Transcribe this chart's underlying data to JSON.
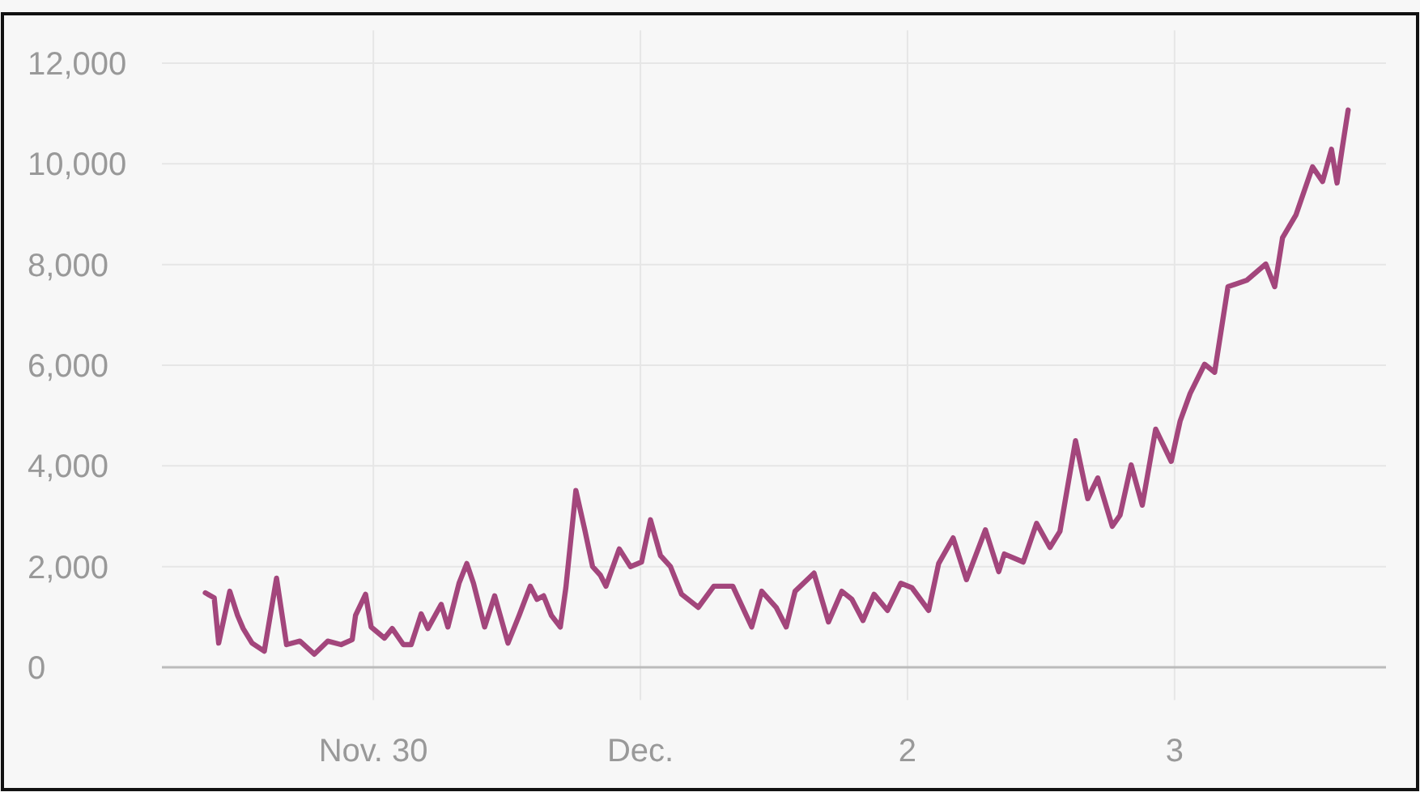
{
  "chart_data": {
    "type": "line",
    "color": "#a3467c",
    "grid": true,
    "xlim": [
      "--11-29T05:00",
      "--12-03T19:00"
    ],
    "xticks": [
      {
        "value": "--11-30",
        "label": "Nov. 30"
      },
      {
        "value": "--12-01",
        "label": "Dec."
      },
      {
        "value": "--12-02",
        "label": "2"
      },
      {
        "value": "--12-03",
        "label": "3"
      }
    ],
    "ylim": [
      -650,
      12650
    ],
    "yticks": [
      {
        "value": 0,
        "label": "0"
      },
      {
        "value": 2000,
        "label": "2,000"
      },
      {
        "value": 4000,
        "label": "4,000"
      },
      {
        "value": 6000,
        "label": "6,000"
      },
      {
        "value": 8000,
        "label": "8,000"
      },
      {
        "value": 10000,
        "label": "10,000"
      },
      {
        "value": 12000,
        "label": "12,000"
      }
    ],
    "x": [
      "--11-29T08:54",
      "--11-29T09:42",
      "--11-29T10:06",
      "--11-29T11:06",
      "--11-29T11:48",
      "--11-29T12:18",
      "--11-29T13:06",
      "--11-29T14:12",
      "--11-29T15:18",
      "--11-29T16:12",
      "--11-29T17:24",
      "--11-29T18:42",
      "--11-29T19:54",
      "--11-29T21:06",
      "--11-29T22:06",
      "--11-29T22:24",
      "--11-29T23:18",
      "--11-29T23:48",
      "--11-30T01:00",
      "--11-30T01:42",
      "--11-30T02:42",
      "--11-30T03:24",
      "--11-30T04:18",
      "--11-30T04:54",
      "--11-30T06:06",
      "--11-30T06:42",
      "--11-30T07:42",
      "--11-30T08:24",
      "--11-30T09:00",
      "--11-30T10:00",
      "--11-30T10:54",
      "--11-30T12:06",
      "--11-30T13:06",
      "--11-30T14:06",
      "--11-30T14:42",
      "--11-30T15:18",
      "--11-30T16:00",
      "--11-30T16:48",
      "--11-30T17:18",
      "--11-30T18:12",
      "--11-30T19:00",
      "--11-30T19:42",
      "--11-30T20:24",
      "--11-30T20:54",
      "--11-30T22:06",
      "--11-30T23:06",
      "--12-01T00:06",
      "--12-01T00:54",
      "--12-01T01:48",
      "--12-01T02:42",
      "--12-01T03:42",
      "--12-01T05:12",
      "--12-01T06:36",
      "--12-01T08:18",
      "--12-01T10:00",
      "--12-01T10:54",
      "--12-01T12:12",
      "--12-01T13:06",
      "--12-01T13:54",
      "--12-01T15:36",
      "--12-01T16:54",
      "--12-01T18:06",
      "--12-01T19:00",
      "--12-01T20:00",
      "--12-01T21:00",
      "--12-01T22:12",
      "--12-01T23:24",
      "--12-02T00:24",
      "--12-02T01:54",
      "--12-02T02:48",
      "--12-02T04:06",
      "--12-02T05:18",
      "--12-02T07:00",
      "--12-02T08:12",
      "--12-02T08:42",
      "--12-02T10:24",
      "--12-02T11:36",
      "--12-02T12:48",
      "--12-02T13:42",
      "--12-02T15:06",
      "--12-02T16:12",
      "--12-02T17:06",
      "--12-02T18:24",
      "--12-02T19:06",
      "--12-02T20:06",
      "--12-02T21:06",
      "--12-02T22:18",
      "--12-02T23:42",
      "--12-03T00:30",
      "--12-03T01:24",
      "--12-03T02:42",
      "--12-03T03:36",
      "--12-03T04:48",
      "--12-03T06:30",
      "--12-03T08:12",
      "--12-03T09:00",
      "--12-03T09:42",
      "--12-03T10:54",
      "--12-03T12:24",
      "--12-03T13:18",
      "--12-03T14:06",
      "--12-03T14:36",
      "--12-03T15:06",
      "--12-03T15:36"
    ],
    "values": [
      1480,
      1380,
      480,
      1510,
      1030,
      770,
      480,
      320,
      1770,
      450,
      520,
      260,
      520,
      450,
      550,
      1030,
      1450,
      800,
      580,
      770,
      450,
      450,
      1060,
      770,
      1250,
      800,
      1670,
      2060,
      1670,
      800,
      1420,
      480,
      1030,
      1610,
      1350,
      1420,
      1030,
      800,
      1580,
      3510,
      2730,
      2000,
      1830,
      1610,
      2350,
      2000,
      2090,
      2930,
      2220,
      2000,
      1450,
      1190,
      1610,
      1610,
      800,
      1510,
      1190,
      800,
      1510,
      1870,
      900,
      1510,
      1350,
      930,
      1450,
      1130,
      1670,
      1580,
      1130,
      2060,
      2570,
      1740,
      2730,
      1900,
      2250,
      2090,
      2860,
      2380,
      2700,
      4500,
      3350,
      3760,
      2800,
      3020,
      4020,
      3220,
      4730,
      4090,
      4890,
      5440,
      6020,
      5860,
      7560,
      7690,
      8010,
      7560,
      8530,
      8980,
      9940,
      9650,
      10290,
      9620,
      10360,
      11070
    ]
  }
}
